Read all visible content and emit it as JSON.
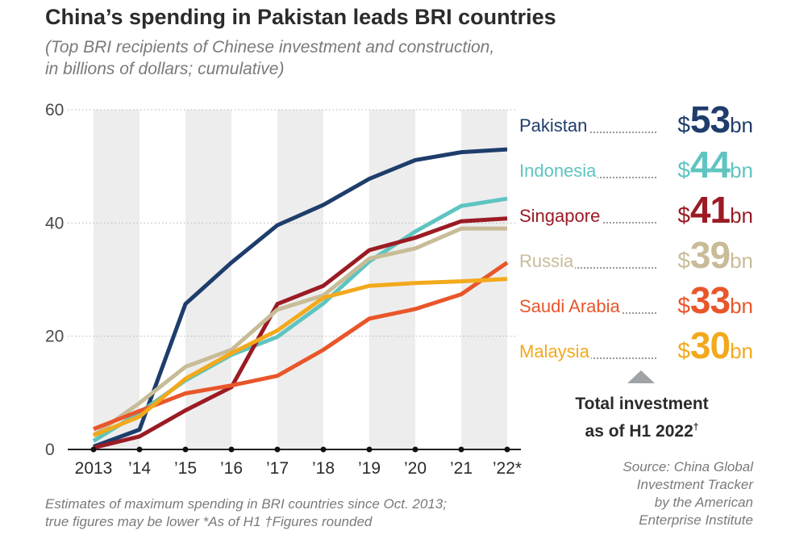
{
  "title": "China’s spending in Pakistan leads BRI countries",
  "subtitle_line1": "(Top BRI recipients of Chinese investment and construction,",
  "subtitle_line2": "in billions of dollars; cumulative)",
  "chart_data": {
    "type": "line",
    "x": [
      "2013",
      "’14",
      "’15",
      "’16",
      "’17",
      "’18",
      "’19",
      "’20",
      "’21",
      "’22*"
    ],
    "ylim": [
      0,
      60
    ],
    "yticks": [
      "0",
      "20",
      "40",
      "60"
    ],
    "grid": true,
    "legend_position": "right",
    "series": [
      {
        "name": "Pakistan",
        "color": "#1e3d6b",
        "values": [
          0.5,
          3.5,
          25.7,
          33,
          39.6,
          43.2,
          47.8,
          51.1,
          52.5,
          53
        ]
      },
      {
        "name": "Indonesia",
        "color": "#5fc4c0",
        "values": [
          1.5,
          6.5,
          12.2,
          16.7,
          19.9,
          25.8,
          33.2,
          38.5,
          43,
          44.3
        ]
      },
      {
        "name": "Singapore",
        "color": "#9b1b24",
        "values": [
          0.3,
          2.3,
          6.9,
          11,
          25.7,
          28.9,
          35.2,
          37.4,
          40.3,
          40.8
        ]
      },
      {
        "name": "Russia",
        "color": "#c8bc98",
        "values": [
          2.5,
          8.2,
          14.6,
          17.6,
          24.7,
          27.2,
          33.7,
          35.5,
          39,
          39
        ]
      },
      {
        "name": "Saudi Arabia",
        "color": "#e8562a",
        "values": [
          3.6,
          6.8,
          9.9,
          11.3,
          13,
          17.6,
          23.1,
          24.8,
          27.4,
          33
        ]
      },
      {
        "name": "Malaysia",
        "color": "#f2a91c",
        "values": [
          2.5,
          5.8,
          12.5,
          17,
          21,
          26.8,
          28.9,
          29.4,
          29.7,
          30.1
        ]
      }
    ]
  },
  "legend": [
    {
      "name": "Pakistan",
      "sym": "$",
      "num": "53",
      "unit": "bn",
      "color": "#1e3d6b"
    },
    {
      "name": "Indonesia",
      "sym": "$",
      "num": "44",
      "unit": "bn",
      "color": "#5fc4c0"
    },
    {
      "name": "Singapore",
      "sym": "$",
      "num": "41",
      "unit": "bn",
      "color": "#9b1b24"
    },
    {
      "name": "Russia",
      "sym": "$",
      "num": "39",
      "unit": "bn",
      "color": "#c8bc98"
    },
    {
      "name": "Saudi Arabia",
      "sym": "$",
      "num": "33",
      "unit": "bn",
      "color": "#e8562a"
    },
    {
      "name": "Malaysia",
      "sym": "$",
      "num": "30",
      "unit": "bn",
      "color": "#f2a91c"
    }
  ],
  "total_line1": "Total investment",
  "total_line2": "as of H1 2022",
  "total_mark": "†",
  "source": "Source: China Global\nInvestment Tracker\nby the American\nEnterprise Institute",
  "note": "Estimates of maximum spending in BRI countries since Oct. 2013;\ntrue figures may be lower  *As of H1  †Figures rounded"
}
